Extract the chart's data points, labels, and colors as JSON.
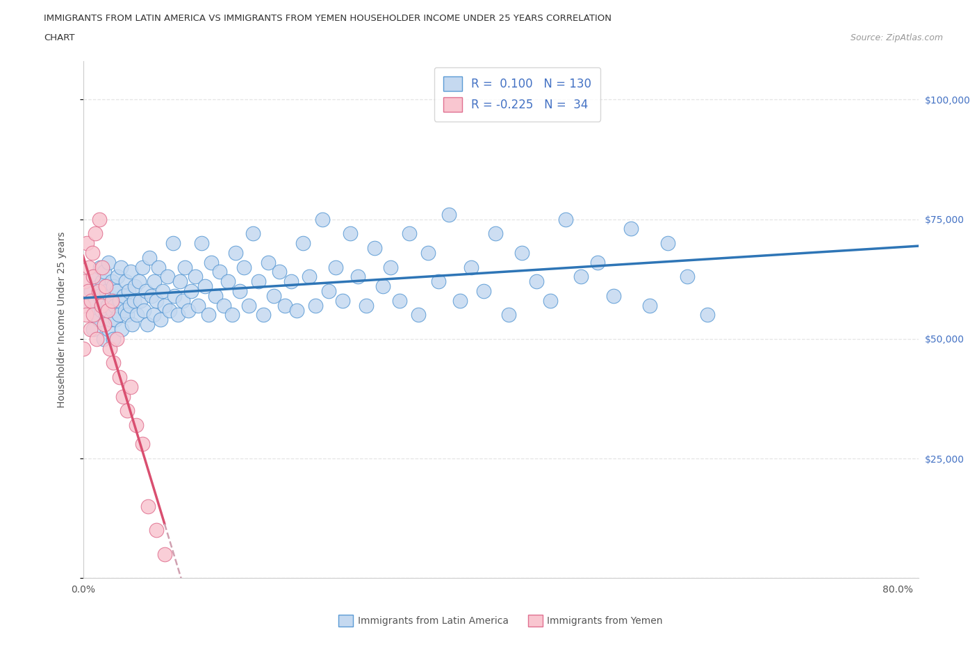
{
  "title_line1": "IMMIGRANTS FROM LATIN AMERICA VS IMMIGRANTS FROM YEMEN HOUSEHOLDER INCOME UNDER 25 YEARS CORRELATION",
  "title_line2": "CHART",
  "source_text": "Source: ZipAtlas.com",
  "ylabel": "Householder Income Under 25 years",
  "xlim": [
    0.0,
    0.82
  ],
  "ylim": [
    0,
    108000
  ],
  "ytick_positions": [
    0,
    25000,
    50000,
    75000,
    100000
  ],
  "ytick_labels_right": [
    "",
    "$25,000",
    "$50,000",
    "$75,000",
    "$100,000"
  ],
  "legend1_r": "0.100",
  "legend1_n": "130",
  "legend2_r": "-0.225",
  "legend2_n": "34",
  "color_latin_fill": "#c5d9f0",
  "color_latin_edge": "#5b9bd5",
  "color_latin_line": "#2e75b6",
  "color_yemen_fill": "#f9c6d0",
  "color_yemen_edge": "#e07090",
  "color_yemen_line": "#d94f70",
  "color_dashed": "#d0a0b0",
  "background": "#ffffff",
  "grid_color": "#e5e5e5",
  "latin_x": [
    0.005,
    0.008,
    0.01,
    0.01,
    0.012,
    0.013,
    0.015,
    0.015,
    0.016,
    0.017,
    0.018,
    0.019,
    0.02,
    0.02,
    0.021,
    0.022,
    0.023,
    0.024,
    0.025,
    0.025,
    0.026,
    0.027,
    0.028,
    0.029,
    0.03,
    0.03,
    0.031,
    0.032,
    0.033,
    0.034,
    0.035,
    0.036,
    0.037,
    0.038,
    0.04,
    0.041,
    0.042,
    0.043,
    0.045,
    0.046,
    0.047,
    0.048,
    0.05,
    0.051,
    0.053,
    0.055,
    0.056,
    0.058,
    0.06,
    0.062,
    0.063,
    0.065,
    0.067,
    0.069,
    0.07,
    0.072,
    0.074,
    0.076,
    0.078,
    0.08,
    0.083,
    0.085,
    0.088,
    0.09,
    0.093,
    0.095,
    0.098,
    0.1,
    0.103,
    0.106,
    0.11,
    0.113,
    0.116,
    0.12,
    0.123,
    0.126,
    0.13,
    0.134,
    0.138,
    0.142,
    0.146,
    0.15,
    0.154,
    0.158,
    0.163,
    0.167,
    0.172,
    0.177,
    0.182,
    0.187,
    0.193,
    0.198,
    0.204,
    0.21,
    0.216,
    0.222,
    0.228,
    0.235,
    0.241,
    0.248,
    0.255,
    0.262,
    0.27,
    0.278,
    0.286,
    0.294,
    0.302,
    0.311,
    0.32,
    0.329,
    0.339,
    0.349,
    0.359,
    0.37,
    0.381,
    0.393,
    0.405,
    0.418,
    0.431,
    0.445,
    0.459,
    0.474,
    0.489,
    0.505,
    0.521,
    0.538,
    0.556,
    0.574,
    0.593,
    0.613
  ],
  "latin_y": [
    57000,
    60000,
    52000,
    63000,
    58000,
    55000,
    61000,
    54000,
    59000,
    65000,
    56000,
    62000,
    50000,
    58000,
    64000,
    55000,
    60000,
    57000,
    52000,
    66000,
    59000,
    54000,
    62000,
    56000,
    50000,
    61000,
    57000,
    54000,
    60000,
    63000,
    55000,
    58000,
    65000,
    52000,
    59000,
    56000,
    62000,
    55000,
    60000,
    57000,
    64000,
    53000,
    58000,
    61000,
    55000,
    62000,
    58000,
    65000,
    56000,
    60000,
    53000,
    67000,
    59000,
    55000,
    62000,
    58000,
    65000,
    54000,
    60000,
    57000,
    63000,
    56000,
    70000,
    59000,
    55000,
    62000,
    58000,
    65000,
    56000,
    60000,
    63000,
    57000,
    70000,
    61000,
    55000,
    66000,
    59000,
    64000,
    57000,
    62000,
    55000,
    68000,
    60000,
    65000,
    57000,
    72000,
    62000,
    55000,
    66000,
    59000,
    64000,
    57000,
    62000,
    56000,
    70000,
    63000,
    57000,
    75000,
    60000,
    65000,
    58000,
    72000,
    63000,
    57000,
    69000,
    61000,
    65000,
    58000,
    72000,
    55000,
    68000,
    62000,
    76000,
    58000,
    65000,
    60000,
    72000,
    55000,
    68000,
    62000,
    58000,
    75000,
    63000,
    66000,
    59000,
    73000,
    57000,
    70000,
    63000,
    55000
  ],
  "yemen_x": [
    0.0,
    0.0,
    0.002,
    0.003,
    0.004,
    0.005,
    0.006,
    0.007,
    0.008,
    0.009,
    0.01,
    0.01,
    0.012,
    0.013,
    0.015,
    0.016,
    0.018,
    0.019,
    0.021,
    0.022,
    0.024,
    0.026,
    0.028,
    0.03,
    0.033,
    0.036,
    0.039,
    0.043,
    0.047,
    0.052,
    0.058,
    0.064,
    0.072,
    0.08
  ],
  "yemen_y": [
    57000,
    48000,
    62000,
    55000,
    70000,
    60000,
    65000,
    52000,
    58000,
    68000,
    55000,
    63000,
    72000,
    50000,
    60000,
    75000,
    57000,
    65000,
    53000,
    61000,
    56000,
    48000,
    58000,
    45000,
    50000,
    42000,
    38000,
    35000,
    40000,
    32000,
    28000,
    15000,
    10000,
    5000
  ]
}
